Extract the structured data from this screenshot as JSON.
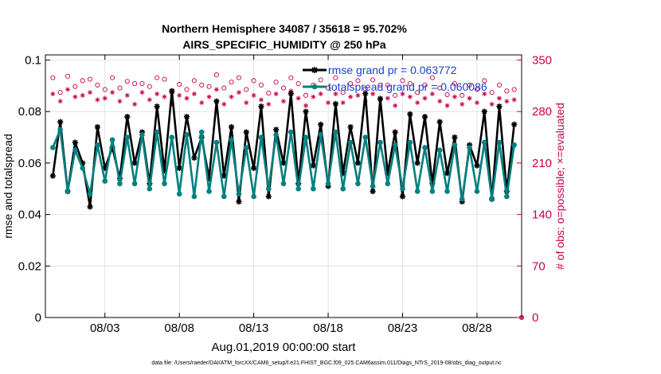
{
  "chart_data": {
    "type": "line",
    "title": "Northern Hemisphere 34087 / 35618 = 95.702%",
    "subtitle": "AIRS_SPECIFIC_HUMIDITY @ 250 hPa",
    "xlabel": "Aug.01,2019 00:00:00 start",
    "ylabel": "rmse and totalspread",
    "y2label": "# of obs: o=possible; ×=evaluated",
    "footnote": "data file: /Users/raeder/DAI/ATM_forcXX/CAM6_setup/f.e21.FHIST_BGC.f09_025.CAM6assim.011/Diags_NTrS_2019-08/obs_diag_output.nc",
    "xlim": [
      0,
      64
    ],
    "ylim": [
      0,
      0.102
    ],
    "y2lim": [
      0,
      357
    ],
    "x_ticks": [
      8,
      18,
      28,
      38,
      48,
      58
    ],
    "x_tick_labels": [
      "08/03",
      "08/08",
      "08/13",
      "08/18",
      "08/23",
      "08/28"
    ],
    "y_ticks": [
      0,
      0.02,
      0.04,
      0.06,
      0.08,
      0.1
    ],
    "y_tick_labels": [
      "0",
      "0.02",
      "0.04",
      "0.06",
      "0.08",
      "0.1"
    ],
    "y2_ticks": [
      0,
      70,
      140,
      210,
      280,
      350
    ],
    "y2_tick_labels": [
      "0",
      "70",
      "140",
      "210",
      "280",
      "350"
    ],
    "grid": true,
    "legend_position": "top-right",
    "series": [
      {
        "name": "rmse grand pr = 0.063772",
        "color": "#000000",
        "marker": "asterisk",
        "x": [
          1,
          2,
          3,
          4,
          5,
          6,
          7,
          8,
          9,
          10,
          11,
          12,
          13,
          14,
          15,
          16,
          17,
          18,
          19,
          20,
          21,
          22,
          23,
          24,
          25,
          26,
          27,
          28,
          29,
          30,
          31,
          32,
          33,
          34,
          35,
          36,
          37,
          38,
          39,
          40,
          41,
          42,
          43,
          44,
          45,
          46,
          47,
          48,
          49,
          50,
          51,
          52,
          53,
          54,
          55,
          56,
          57,
          58,
          59,
          60,
          61,
          62,
          63
        ],
        "values": [
          0.055,
          0.076,
          0.049,
          0.068,
          0.06,
          0.043,
          0.074,
          0.058,
          0.066,
          0.054,
          0.078,
          0.06,
          0.072,
          0.052,
          0.082,
          0.057,
          0.088,
          0.058,
          0.078,
          0.062,
          0.07,
          0.054,
          0.084,
          0.055,
          0.074,
          0.045,
          0.072,
          0.058,
          0.082,
          0.047,
          0.073,
          0.06,
          0.087,
          0.052,
          0.08,
          0.059,
          0.075,
          0.051,
          0.083,
          0.056,
          0.074,
          0.06,
          0.087,
          0.049,
          0.085,
          0.056,
          0.072,
          0.047,
          0.079,
          0.06,
          0.078,
          0.052,
          0.076,
          0.056,
          0.07,
          0.045,
          0.067,
          0.059,
          0.08,
          0.046,
          0.082,
          0.049,
          0.075
        ]
      },
      {
        "name": "totalspread grand pr = 0.060086",
        "color": "#008080",
        "marker": "dot",
        "x": [
          1,
          2,
          3,
          4,
          5,
          6,
          7,
          8,
          9,
          10,
          11,
          12,
          13,
          14,
          15,
          16,
          17,
          18,
          19,
          20,
          21,
          22,
          23,
          24,
          25,
          26,
          27,
          28,
          29,
          30,
          31,
          32,
          33,
          34,
          35,
          36,
          37,
          38,
          39,
          40,
          41,
          42,
          43,
          44,
          45,
          46,
          47,
          48,
          49,
          50,
          51,
          52,
          53,
          54,
          55,
          56,
          57,
          58,
          59,
          60,
          61,
          62,
          63
        ],
        "values": [
          0.066,
          0.073,
          0.049,
          0.065,
          0.058,
          0.048,
          0.067,
          0.053,
          0.069,
          0.052,
          0.07,
          0.052,
          0.071,
          0.05,
          0.072,
          0.052,
          0.07,
          0.048,
          0.071,
          0.047,
          0.072,
          0.049,
          0.068,
          0.047,
          0.069,
          0.048,
          0.066,
          0.047,
          0.07,
          0.05,
          0.071,
          0.052,
          0.072,
          0.05,
          0.07,
          0.05,
          0.071,
          0.052,
          0.072,
          0.05,
          0.068,
          0.052,
          0.07,
          0.051,
          0.068,
          0.052,
          0.067,
          0.05,
          0.068,
          0.049,
          0.066,
          0.049,
          0.065,
          0.049,
          0.067,
          0.046,
          0.066,
          0.049,
          0.068,
          0.046,
          0.068,
          0.047,
          0.067
        ]
      },
      {
        "name": "possible",
        "axis": "y2",
        "color": "#c8004b",
        "marker": "circle",
        "x": [
          1,
          2,
          3,
          4,
          5,
          6,
          7,
          8,
          9,
          10,
          11,
          12,
          13,
          14,
          15,
          16,
          17,
          18,
          19,
          20,
          21,
          22,
          23,
          24,
          25,
          26,
          27,
          28,
          29,
          30,
          31,
          32,
          33,
          34,
          35,
          36,
          37,
          38,
          39,
          40,
          41,
          42,
          43,
          44,
          45,
          46,
          47,
          48,
          49,
          50,
          51,
          52,
          53,
          54,
          55,
          56,
          57,
          58,
          59,
          60,
          61,
          62,
          63
        ],
        "values": [
          326,
          306,
          328,
          314,
          322,
          324,
          316,
          310,
          326,
          312,
          321,
          318,
          318,
          314,
          326,
          324,
          306,
          317,
          310,
          322,
          316,
          314,
          330,
          312,
          320,
          326,
          310,
          322,
          316,
          305,
          320,
          312,
          326,
          318,
          302,
          316,
          323,
          312,
          326,
          306,
          318,
          322,
          311,
          323,
          316,
          316,
          302,
          322,
          318,
          306,
          316,
          326,
          312,
          303,
          318,
          302,
          316,
          310,
          322,
          306,
          316,
          308,
          310
        ]
      },
      {
        "name": "evaluated",
        "axis": "y2",
        "color": "#c8004b",
        "marker": "asterisk",
        "x": [
          1,
          2,
          3,
          4,
          5,
          6,
          7,
          8,
          9,
          10,
          11,
          12,
          13,
          14,
          15,
          16,
          17,
          18,
          19,
          20,
          21,
          22,
          23,
          24,
          25,
          26,
          27,
          28,
          29,
          30,
          31,
          32,
          33,
          34,
          35,
          36,
          37,
          38,
          39,
          40,
          41,
          42,
          43,
          44,
          45,
          46,
          47,
          48,
          49,
          50,
          51,
          52,
          53,
          54,
          55,
          56,
          57,
          58,
          59,
          60,
          61,
          62,
          63
        ],
        "values": [
          304,
          294,
          310,
          300,
          302,
          306,
          296,
          298,
          306,
          294,
          302,
          290,
          306,
          296,
          304,
          300,
          290,
          302,
          298,
          304,
          292,
          300,
          310,
          290,
          300,
          306,
          292,
          302,
          296,
          290,
          304,
          294,
          308,
          298,
          288,
          300,
          304,
          292,
          304,
          292,
          300,
          302,
          294,
          304,
          296,
          298,
          288,
          304,
          300,
          292,
          298,
          304,
          294,
          288,
          300,
          290,
          298,
          292,
          304,
          290,
          298,
          294,
          296
        ]
      }
    ]
  }
}
